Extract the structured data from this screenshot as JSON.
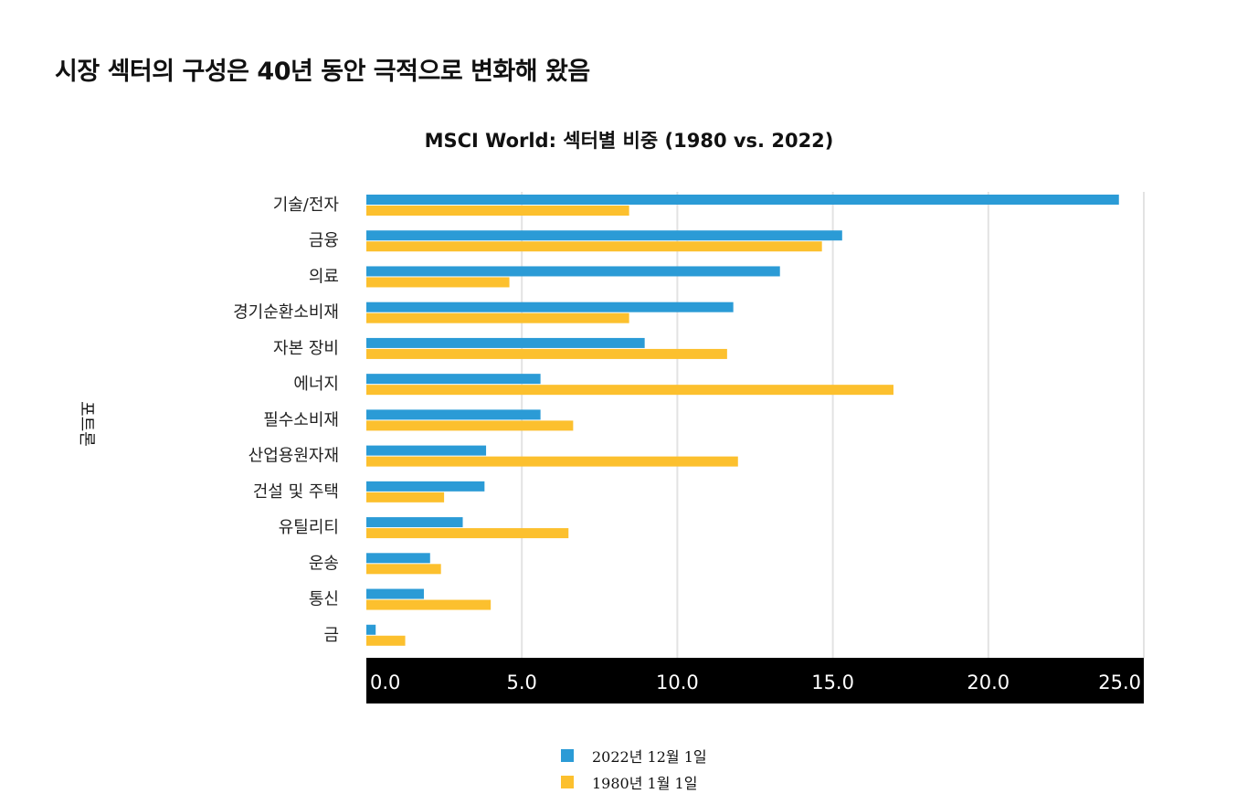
{
  "page": {
    "title": "시장 섹터의 구성은 40년 동안 극적으로 변화해 왔음"
  },
  "chart_data": {
    "type": "bar",
    "orientation": "horizontal",
    "title": "MSCI World: 섹터별 비중 (1980 vs. 2022)",
    "ylabel": "포트론",
    "xlabel": "",
    "xlim": [
      0,
      25
    ],
    "xticks": [
      "0.0",
      "5.0",
      "10.0",
      "15.0",
      "20.0",
      "25.0"
    ],
    "grid": true,
    "legend_position": "bottom",
    "categories": [
      "기술/전자",
      "금융",
      "의료",
      "경기순환소비재",
      "자본 장비",
      "에너지",
      "필수소비재",
      "산업용원자재",
      "건설 및 주택",
      "유틸리티",
      "운송",
      "통신",
      "금"
    ],
    "series": [
      {
        "name": "2022년 12월 1일",
        "color": "#2b9bd6",
        "values": [
          24.2,
          15.3,
          13.3,
          11.8,
          8.95,
          5.6,
          5.6,
          3.85,
          3.8,
          3.1,
          2.05,
          1.85,
          0.3
        ]
      },
      {
        "name": "1980년 1월 1일",
        "color": "#fcc02e",
        "values": [
          8.45,
          14.65,
          4.6,
          8.45,
          11.6,
          16.95,
          6.65,
          11.95,
          2.5,
          6.5,
          2.4,
          4.0,
          1.25
        ]
      }
    ]
  }
}
